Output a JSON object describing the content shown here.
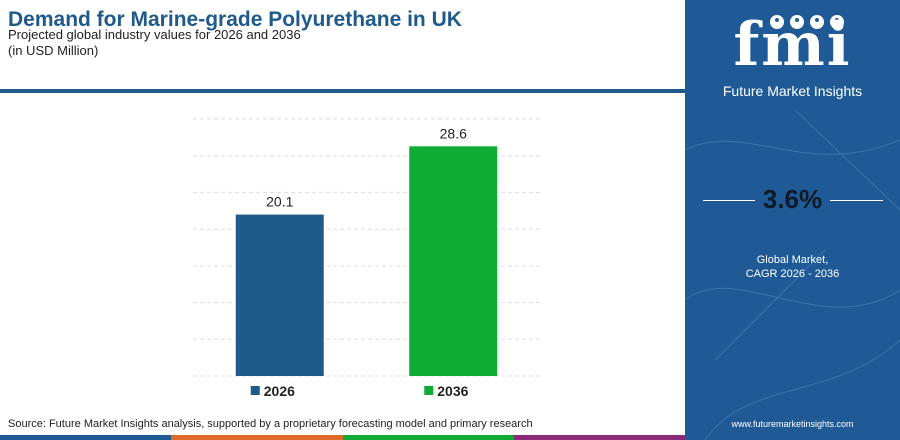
{
  "header": {
    "title": "Demand for Marine-grade Polyurethane in UK",
    "subtitle": "Projected global industry values for 2026 and 2036",
    "unit": "(in USD Million)"
  },
  "chart_data": {
    "type": "bar",
    "title": "Demand for Marine-grade Polyurethane in UK",
    "subtitle": "Projected global industry values for 2026 and 2036",
    "ylabel": "(in USD Million)",
    "categories": [
      "2026",
      "2036"
    ],
    "values": [
      20.1,
      28.6
    ],
    "value_labels": [
      "20.1",
      "28.6"
    ],
    "colors": [
      "#1f5a8a",
      "#0fac35"
    ],
    "ylim": [
      0,
      32
    ],
    "grid": true,
    "legend": "bottom"
  },
  "side_panel": {
    "logo": "fmi",
    "brand": "Future Market Insights",
    "cagr_value": "3.6%",
    "cagr_label_line1": "Global Market,",
    "cagr_label_line2": "CAGR 2026 - 2036",
    "website": "www.futuremarketinsights.com"
  },
  "footer": {
    "source": "Source: Future Market Insights analysis, supported by a proprietary forecasting model and primary research",
    "bar_colors": [
      "#1f5a96",
      "#e06a2a",
      "#0fac35",
      "#8a2a7a"
    ]
  }
}
